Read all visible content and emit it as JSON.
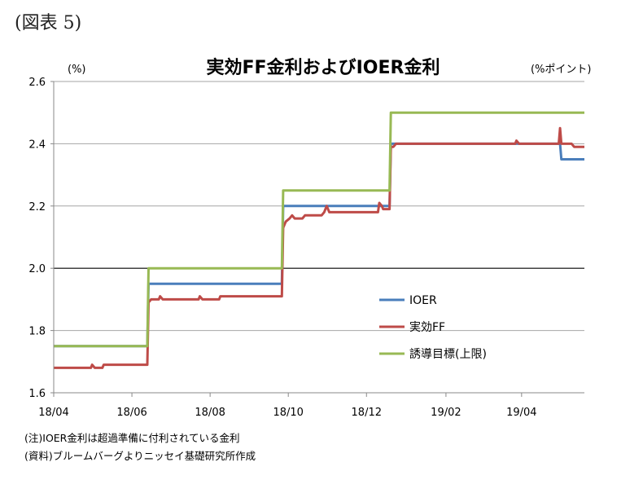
{
  "figure_label": "(図表 5)",
  "notes": [
    "(注)IOER金利は超過準備に付利されている金利",
    "(資料)ブルームバーグよりニッセイ基礎研究所作成"
  ],
  "chart_data": {
    "type": "line",
    "title": "実効FF金利およびIOER金利",
    "ylabel": "(%)",
    "ylabel_right": "(%ポイント)",
    "ylim": [
      1.6,
      2.6
    ],
    "y_ticks": [
      "1.6",
      "1.8",
      "2.0",
      "2.2",
      "2.4",
      "2.6"
    ],
    "x_range": [
      "2018-04-01",
      "2019-05-20"
    ],
    "x_ticks": [
      {
        "date": "2018-04-01",
        "label": "18/04"
      },
      {
        "date": "2018-06-01",
        "label": "18/06"
      },
      {
        "date": "2018-08-01",
        "label": "18/08"
      },
      {
        "date": "2018-10-01",
        "label": "18/10"
      },
      {
        "date": "2018-12-01",
        "label": "18/12"
      },
      {
        "date": "2019-02-01",
        "label": "19/02"
      },
      {
        "date": "2019-04-01",
        "label": "19/04"
      }
    ],
    "reference_line": 2.0,
    "grid": "horizontal",
    "legend_position": "center-right",
    "series": [
      {
        "name": "IOER",
        "color": "#4a7ebb",
        "points": [
          [
            "2018-04-01",
            1.75
          ],
          [
            "2018-06-13",
            1.75
          ],
          [
            "2018-06-14",
            1.95
          ],
          [
            "2018-09-26",
            1.95
          ],
          [
            "2018-09-27",
            2.2
          ],
          [
            "2018-12-19",
            2.2
          ],
          [
            "2018-12-20",
            2.4
          ],
          [
            "2019-05-01",
            2.4
          ],
          [
            "2019-05-02",
            2.35
          ],
          [
            "2019-05-20",
            2.35
          ]
        ]
      },
      {
        "name": "実効FF",
        "color": "#be4b48",
        "points": [
          [
            "2018-04-01",
            1.68
          ],
          [
            "2018-04-30",
            1.68
          ],
          [
            "2018-05-01",
            1.69
          ],
          [
            "2018-05-03",
            1.68
          ],
          [
            "2018-05-09",
            1.68
          ],
          [
            "2018-05-10",
            1.69
          ],
          [
            "2018-06-13",
            1.69
          ],
          [
            "2018-06-14",
            1.89
          ],
          [
            "2018-06-16",
            1.9
          ],
          [
            "2018-06-22",
            1.9
          ],
          [
            "2018-06-23",
            1.91
          ],
          [
            "2018-06-25",
            1.9
          ],
          [
            "2018-07-23",
            1.9
          ],
          [
            "2018-07-24",
            1.91
          ],
          [
            "2018-07-26",
            1.9
          ],
          [
            "2018-08-08",
            1.9
          ],
          [
            "2018-08-09",
            1.91
          ],
          [
            "2018-09-26",
            1.91
          ],
          [
            "2018-09-27",
            2.13
          ],
          [
            "2018-09-29",
            2.15
          ],
          [
            "2018-10-02",
            2.16
          ],
          [
            "2018-10-04",
            2.17
          ],
          [
            "2018-10-06",
            2.16
          ],
          [
            "2018-10-12",
            2.16
          ],
          [
            "2018-10-14",
            2.17
          ],
          [
            "2018-10-27",
            2.17
          ],
          [
            "2018-10-29",
            2.18
          ],
          [
            "2018-10-31",
            2.2
          ],
          [
            "2018-11-02",
            2.18
          ],
          [
            "2018-12-10",
            2.18
          ],
          [
            "2018-12-11",
            2.21
          ],
          [
            "2018-12-13",
            2.2
          ],
          [
            "2018-12-14",
            2.19
          ],
          [
            "2018-12-19",
            2.19
          ],
          [
            "2018-12-20",
            2.39
          ],
          [
            "2018-12-22",
            2.39
          ],
          [
            "2018-12-24",
            2.4
          ],
          [
            "2019-03-27",
            2.4
          ],
          [
            "2019-03-28",
            2.41
          ],
          [
            "2019-03-30",
            2.4
          ],
          [
            "2019-04-29",
            2.4
          ],
          [
            "2019-04-30",
            2.4
          ],
          [
            "2019-05-01",
            2.45
          ],
          [
            "2019-05-02",
            2.4
          ],
          [
            "2019-05-10",
            2.4
          ],
          [
            "2019-05-12",
            2.39
          ],
          [
            "2019-05-20",
            2.39
          ]
        ]
      },
      {
        "name": "誘導目標(上限)",
        "color": "#98b954",
        "points": [
          [
            "2018-04-01",
            1.75
          ],
          [
            "2018-06-13",
            1.75
          ],
          [
            "2018-06-14",
            2.0
          ],
          [
            "2018-09-26",
            2.0
          ],
          [
            "2018-09-27",
            2.25
          ],
          [
            "2018-12-19",
            2.25
          ],
          [
            "2018-12-20",
            2.5
          ],
          [
            "2019-05-20",
            2.5
          ]
        ]
      }
    ]
  }
}
